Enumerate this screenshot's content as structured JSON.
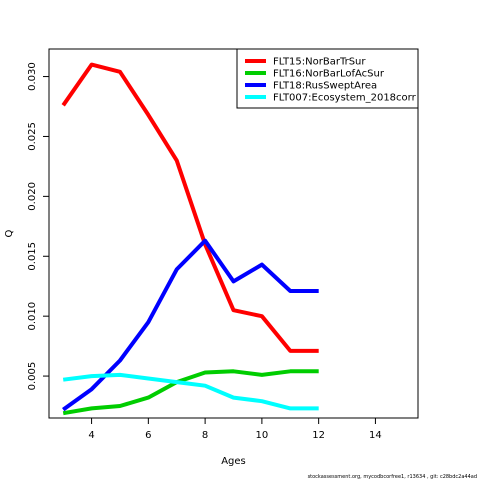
{
  "chart_data": {
    "type": "line",
    "xlabel": "Ages",
    "ylabel": "Q",
    "xlim": [
      2.5,
      15.5
    ],
    "ylim": [
      0.0015,
      0.0323
    ],
    "x_ticks": [
      4,
      6,
      8,
      10,
      12,
      14
    ],
    "y_ticks": [
      0.005,
      0.01,
      0.015,
      0.02,
      0.025,
      0.03
    ],
    "y_tick_labels": [
      "0.005",
      "0.010",
      "0.015",
      "0.020",
      "0.025",
      "0.030"
    ],
    "grid": false,
    "legend_position": "top-right",
    "series": [
      {
        "name": "FLT15:NorBarTrSur",
        "color": "#ff0000",
        "x": [
          3,
          4,
          5,
          6,
          7,
          8,
          9,
          10,
          11,
          12
        ],
        "values": [
          0.0276,
          0.031,
          0.0304,
          0.0268,
          0.023,
          0.016,
          0.0105,
          0.01,
          0.0071,
          0.0071
        ]
      },
      {
        "name": "FLT16:NorBarLofAcSur",
        "color": "#00cd00",
        "x": [
          3,
          4,
          5,
          6,
          7,
          8,
          9,
          10,
          11,
          12
        ],
        "values": [
          0.0019,
          0.0023,
          0.0025,
          0.0032,
          0.0045,
          0.0053,
          0.0054,
          0.0051,
          0.0054,
          0.0054
        ]
      },
      {
        "name": "FLT18:RusSweptArea",
        "color": "#0000ff",
        "x": [
          3,
          4,
          5,
          6,
          7,
          8,
          9,
          10,
          11,
          12
        ],
        "values": [
          0.0022,
          0.0039,
          0.0063,
          0.0095,
          0.0139,
          0.0163,
          0.0129,
          0.0143,
          0.0121,
          0.0121
        ]
      },
      {
        "name": "FLT007:Ecosystem_2018corr",
        "color": "#00ffff",
        "x": [
          3,
          4,
          5,
          6,
          7,
          8,
          9,
          10,
          11,
          12
        ],
        "values": [
          0.0047,
          0.005,
          0.0051,
          0.0048,
          0.0045,
          0.0042,
          0.0032,
          0.0029,
          0.0023,
          0.0023
        ]
      }
    ]
  },
  "footer": "stockassessment.org,  mycodbcorfree1,  r13634 ,  git:  c28bdc2a44ad"
}
